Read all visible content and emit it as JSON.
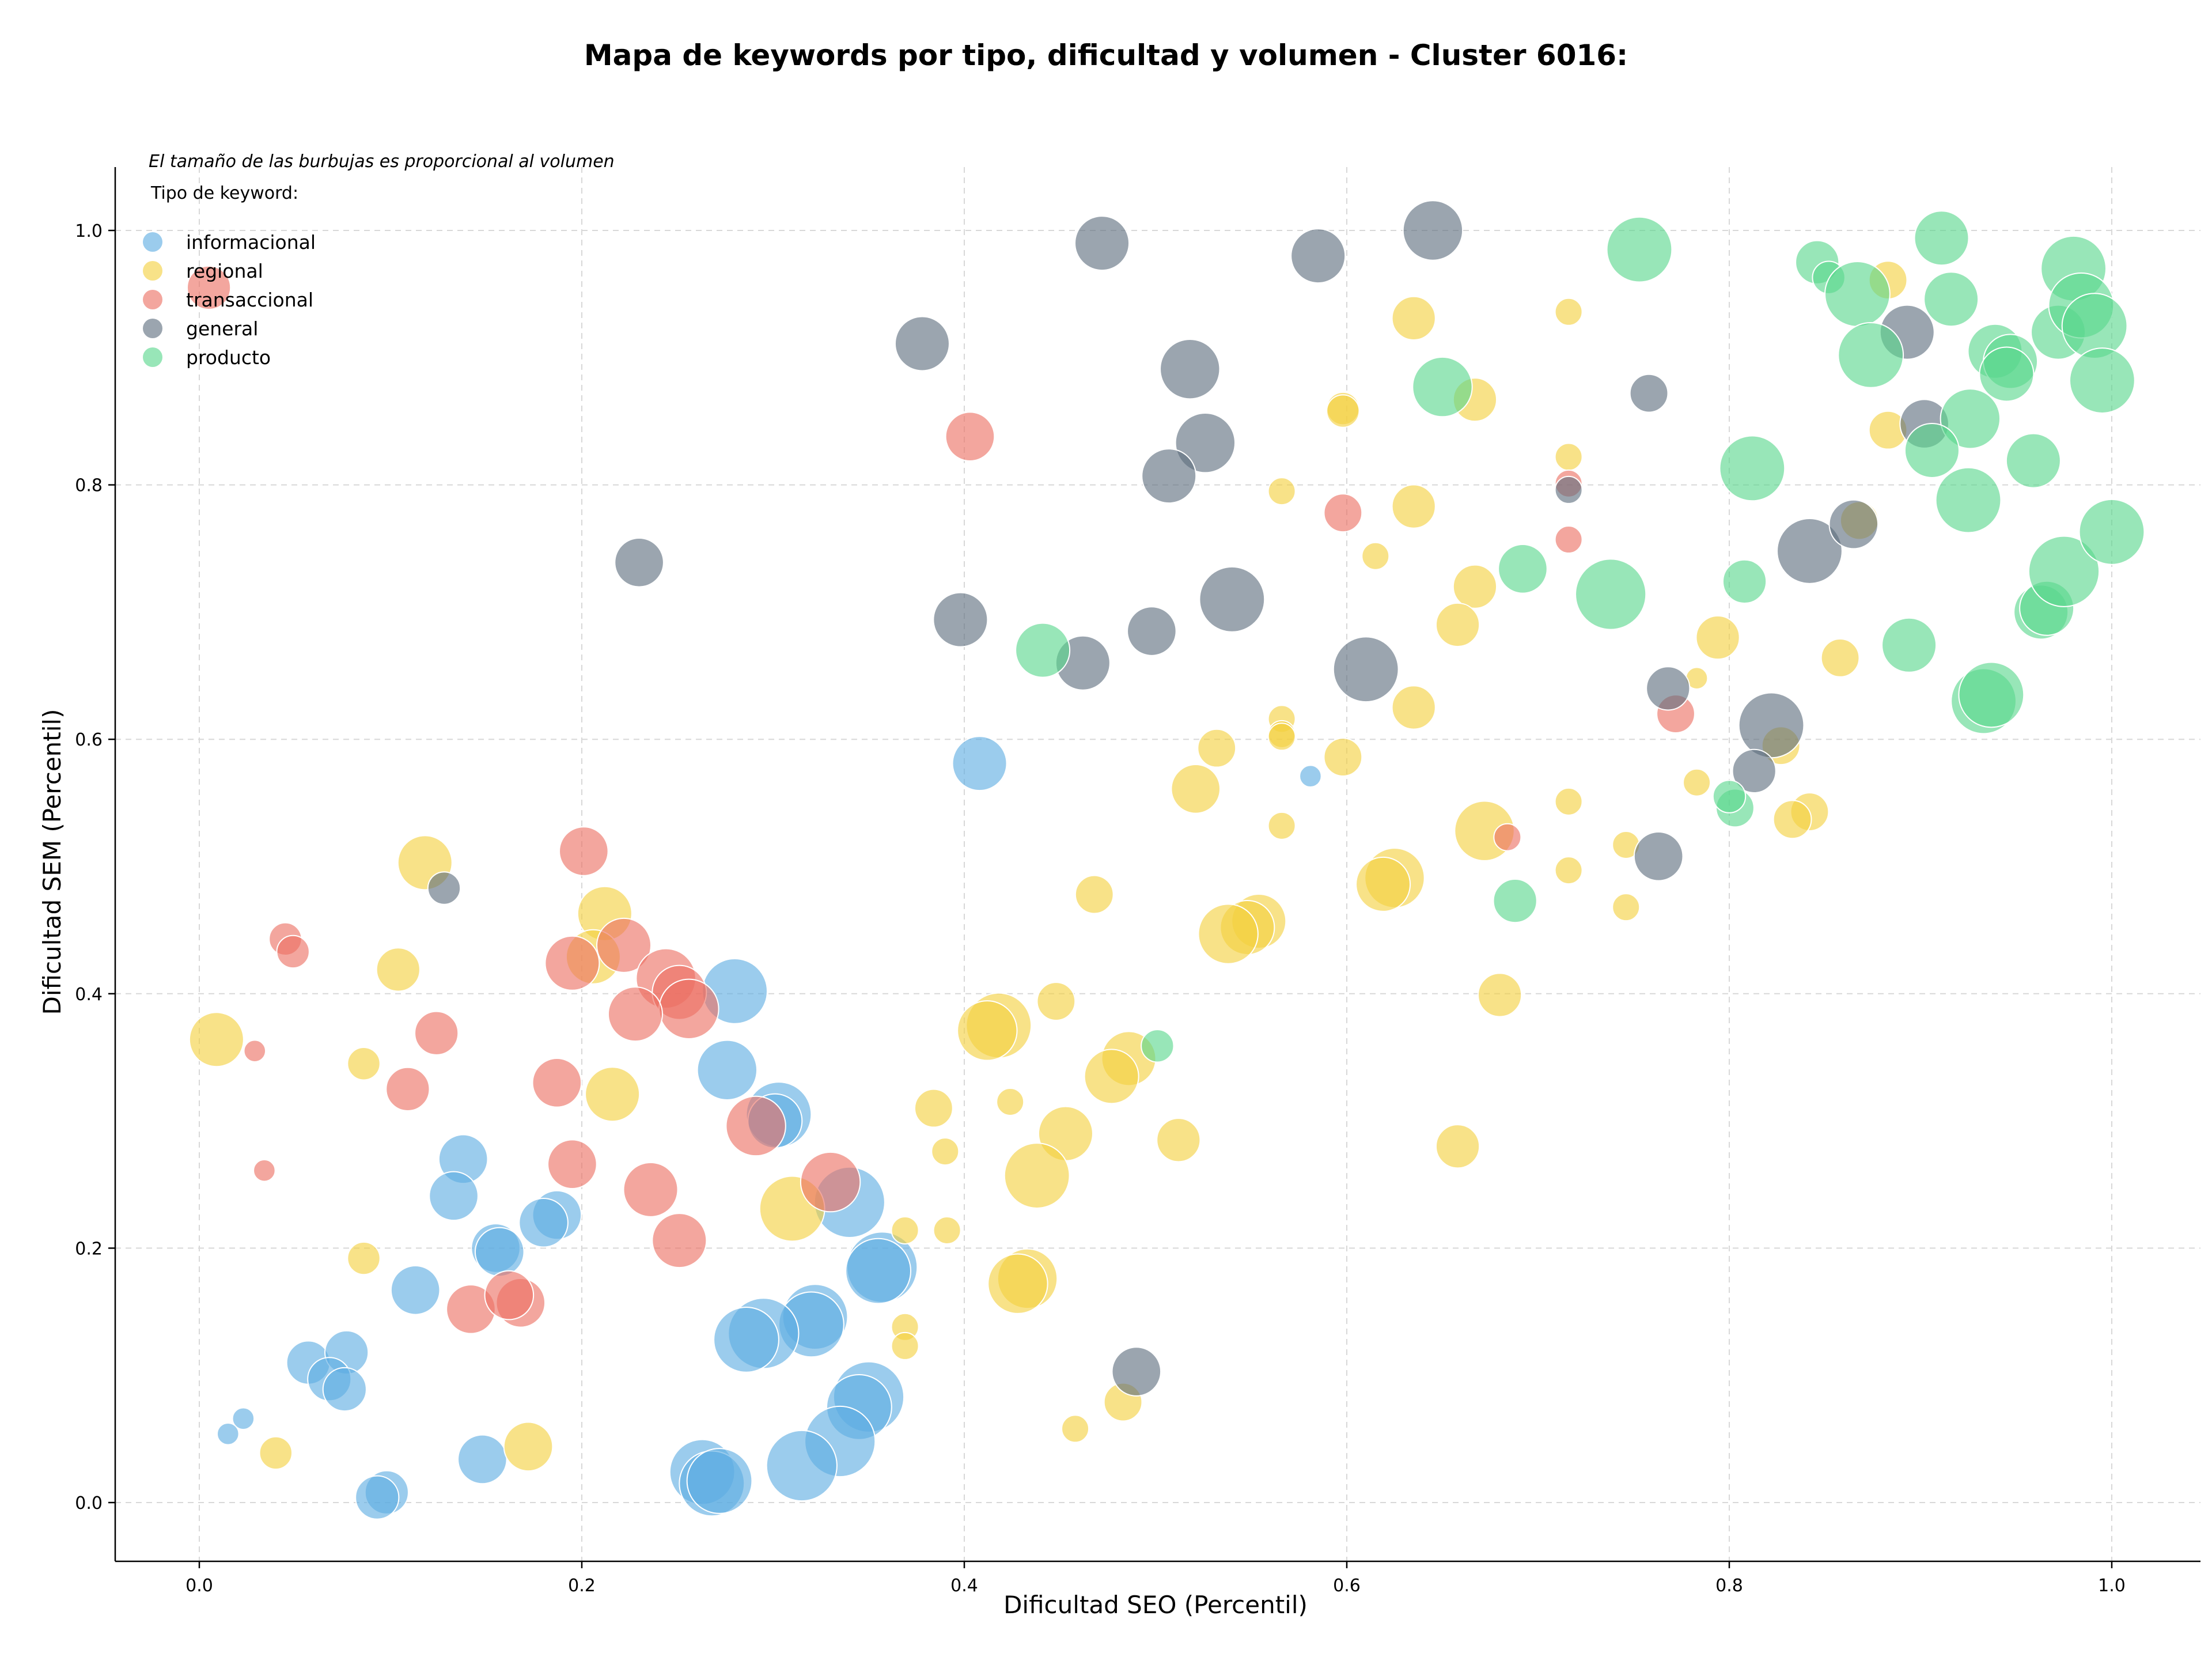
{
  "chart_data": {
    "type": "scatter",
    "title": "Mapa de keywords por tipo, dificultad y volumen - Cluster 6016:",
    "xlabel": "Dificultad SEO (Percentil)",
    "ylabel": "Dificultad SEM (Percentil)",
    "xlim": [
      -0.045,
      1.05
    ],
    "ylim": [
      -0.045,
      1.05
    ],
    "xticks": [
      "0.0",
      "0.2",
      "0.4",
      "0.6",
      "0.8",
      "1.0"
    ],
    "yticks": [
      "0.0",
      "0.2",
      "0.4",
      "0.6",
      "0.8",
      "1.0"
    ],
    "grid": true,
    "legend_position": "top-left",
    "legend_note": "El tamaño de las burbujas es proporcional al volumen",
    "legend_title": "Tipo de keyword:",
    "series": [
      {
        "name": "informacional",
        "color": "#5dade2",
        "points": [
          [
            0.408,
            0.581,
            1.0
          ],
          [
            0.581,
            0.571,
            0.4
          ],
          [
            0.28,
            0.402,
            1.2
          ],
          [
            0.276,
            0.34,
            1.1
          ],
          [
            0.303,
            0.305,
            1.2
          ],
          [
            0.301,
            0.3,
            1.0
          ],
          [
            0.34,
            0.236,
            1.3
          ],
          [
            0.357,
            0.185,
            1.3
          ],
          [
            0.355,
            0.182,
            1.2
          ],
          [
            0.322,
            0.146,
            1.2
          ],
          [
            0.32,
            0.14,
            1.2
          ],
          [
            0.295,
            0.133,
            1.3
          ],
          [
            0.286,
            0.128,
            1.2
          ],
          [
            0.35,
            0.083,
            1.3
          ],
          [
            0.345,
            0.075,
            1.2
          ],
          [
            0.335,
            0.048,
            1.3
          ],
          [
            0.315,
            0.029,
            1.3
          ],
          [
            0.263,
            0.024,
            1.2
          ],
          [
            0.268,
            0.015,
            1.2
          ],
          [
            0.272,
            0.017,
            1.2
          ],
          [
            0.138,
            0.27,
            0.9
          ],
          [
            0.133,
            0.241,
            0.9
          ],
          [
            0.187,
            0.226,
            0.9
          ],
          [
            0.18,
            0.22,
            0.9
          ],
          [
            0.155,
            0.2,
            0.9
          ],
          [
            0.157,
            0.197,
            0.9
          ],
          [
            0.113,
            0.167,
            0.9
          ],
          [
            0.057,
            0.11,
            0.8
          ],
          [
            0.077,
            0.118,
            0.8
          ],
          [
            0.068,
            0.097,
            0.8
          ],
          [
            0.076,
            0.089,
            0.8
          ],
          [
            0.148,
            0.034,
            0.9
          ],
          [
            0.098,
            0.008,
            0.8
          ],
          [
            0.093,
            0.004,
            0.8
          ],
          [
            0.023,
            0.066,
            0.4
          ],
          [
            0.015,
            0.054,
            0.4
          ]
        ]
      },
      {
        "name": "regional",
        "color": "#f4d03f",
        "points": [
          [
            0.635,
            0.931,
            0.8
          ],
          [
            0.598,
            0.86,
            0.6
          ],
          [
            0.598,
            0.858,
            0.6
          ],
          [
            0.667,
            0.867,
            0.8
          ],
          [
            0.716,
            0.936,
            0.5
          ],
          [
            0.716,
            0.822,
            0.5
          ],
          [
            0.566,
            0.795,
            0.5
          ],
          [
            0.635,
            0.783,
            0.8
          ],
          [
            0.615,
            0.744,
            0.5
          ],
          [
            0.667,
            0.72,
            0.8
          ],
          [
            0.658,
            0.69,
            0.8
          ],
          [
            0.635,
            0.625,
            0.8
          ],
          [
            0.566,
            0.616,
            0.5
          ],
          [
            0.566,
            0.604,
            0.5
          ],
          [
            0.566,
            0.602,
            0.5
          ],
          [
            0.532,
            0.593,
            0.7
          ],
          [
            0.598,
            0.586,
            0.7
          ],
          [
            0.521,
            0.561,
            0.9
          ],
          [
            0.566,
            0.532,
            0.5
          ],
          [
            0.672,
            0.528,
            1.1
          ],
          [
            0.716,
            0.551,
            0.5
          ],
          [
            0.716,
            0.497,
            0.5
          ],
          [
            0.746,
            0.517,
            0.5
          ],
          [
            0.746,
            0.468,
            0.5
          ],
          [
            0.625,
            0.491,
            1.1
          ],
          [
            0.619,
            0.486,
            1.0
          ],
          [
            0.554,
            0.457,
            1.0
          ],
          [
            0.548,
            0.452,
            1.0
          ],
          [
            0.538,
            0.447,
            1.1
          ],
          [
            0.468,
            0.478,
            0.7
          ],
          [
            0.68,
            0.399,
            0.8
          ],
          [
            0.448,
            0.394,
            0.7
          ],
          [
            0.418,
            0.375,
            1.2
          ],
          [
            0.412,
            0.371,
            1.1
          ],
          [
            0.486,
            0.349,
            1.0
          ],
          [
            0.477,
            0.335,
            1.0
          ],
          [
            0.384,
            0.31,
            0.7
          ],
          [
            0.424,
            0.315,
            0.5
          ],
          [
            0.453,
            0.29,
            1.0
          ],
          [
            0.512,
            0.285,
            0.8
          ],
          [
            0.39,
            0.276,
            0.5
          ],
          [
            0.658,
            0.28,
            0.8
          ],
          [
            0.438,
            0.257,
            1.2
          ],
          [
            0.31,
            0.231,
            1.2
          ],
          [
            0.369,
            0.214,
            0.5
          ],
          [
            0.391,
            0.214,
            0.5
          ],
          [
            0.433,
            0.176,
            1.1
          ],
          [
            0.428,
            0.172,
            1.1
          ],
          [
            0.369,
            0.138,
            0.5
          ],
          [
            0.369,
            0.123,
            0.5
          ],
          [
            0.483,
            0.079,
            0.7
          ],
          [
            0.458,
            0.058,
            0.5
          ],
          [
            0.794,
            0.68,
            0.8
          ],
          [
            0.858,
            0.664,
            0.7
          ],
          [
            0.783,
            0.648,
            0.4
          ],
          [
            0.783,
            0.566,
            0.5
          ],
          [
            0.827,
            0.595,
            0.7
          ],
          [
            0.842,
            0.543,
            0.7
          ],
          [
            0.833,
            0.537,
            0.7
          ],
          [
            0.883,
            0.961,
            0.7
          ],
          [
            0.883,
            0.843,
            0.7
          ],
          [
            0.868,
            0.772,
            0.7
          ],
          [
            0.118,
            0.503,
            1.0
          ],
          [
            0.212,
            0.463,
            1.0
          ],
          [
            0.206,
            0.429,
            1.0
          ],
          [
            0.104,
            0.419,
            0.8
          ],
          [
            0.009,
            0.364,
            1.0
          ],
          [
            0.086,
            0.345,
            0.6
          ],
          [
            0.216,
            0.321,
            1.0
          ],
          [
            0.086,
            0.192,
            0.6
          ],
          [
            0.172,
            0.044,
            0.9
          ],
          [
            0.04,
            0.039,
            0.6
          ]
        ]
      },
      {
        "name": "transaccional",
        "color": "#ec7063",
        "points": [
          [
            0.403,
            0.838,
            0.9
          ],
          [
            0.598,
            0.778,
            0.7
          ],
          [
            0.716,
            0.801,
            0.5
          ],
          [
            0.716,
            0.757,
            0.5
          ],
          [
            0.772,
            0.62,
            0.7
          ],
          [
            0.684,
            0.523,
            0.5
          ],
          [
            0.005,
            0.955,
            0.8
          ],
          [
            0.201,
            0.512,
            0.9
          ],
          [
            0.045,
            0.443,
            0.6
          ],
          [
            0.049,
            0.433,
            0.6
          ],
          [
            0.222,
            0.438,
            1.0
          ],
          [
            0.195,
            0.424,
            1.0
          ],
          [
            0.244,
            0.412,
            1.1
          ],
          [
            0.251,
            0.401,
            1.0
          ],
          [
            0.256,
            0.388,
            1.1
          ],
          [
            0.228,
            0.384,
            1.0
          ],
          [
            0.124,
            0.369,
            0.8
          ],
          [
            0.029,
            0.355,
            0.4
          ],
          [
            0.109,
            0.325,
            0.8
          ],
          [
            0.187,
            0.33,
            0.9
          ],
          [
            0.195,
            0.266,
            0.9
          ],
          [
            0.291,
            0.296,
            1.1
          ],
          [
            0.034,
            0.261,
            0.4
          ],
          [
            0.236,
            0.246,
            1.0
          ],
          [
            0.33,
            0.252,
            1.1
          ],
          [
            0.251,
            0.206,
            1.0
          ],
          [
            0.142,
            0.152,
            0.9
          ],
          [
            0.168,
            0.157,
            0.9
          ],
          [
            0.162,
            0.163,
            0.9
          ]
        ]
      },
      {
        "name": "general",
        "color": "#5d6d7e",
        "points": [
          [
            0.472,
            0.99,
            1.0
          ],
          [
            0.585,
            0.98,
            1.0
          ],
          [
            0.645,
            1.0,
            1.1
          ],
          [
            0.378,
            0.911,
            1.0
          ],
          [
            0.518,
            0.891,
            1.1
          ],
          [
            0.526,
            0.833,
            1.1
          ],
          [
            0.507,
            0.807,
            1.0
          ],
          [
            0.758,
            0.872,
            0.7
          ],
          [
            0.716,
            0.796,
            0.5
          ],
          [
            0.23,
            0.739,
            0.9
          ],
          [
            0.398,
            0.694,
            1.0
          ],
          [
            0.498,
            0.685,
            0.9
          ],
          [
            0.54,
            0.71,
            1.2
          ],
          [
            0.462,
            0.66,
            1.0
          ],
          [
            0.61,
            0.655,
            1.2
          ],
          [
            0.128,
            0.483,
            0.6
          ],
          [
            0.49,
            0.103,
            0.9
          ],
          [
            0.768,
            0.64,
            0.8
          ],
          [
            0.822,
            0.611,
            1.2
          ],
          [
            0.842,
            0.748,
            1.2
          ],
          [
            0.865,
            0.769,
            0.9
          ],
          [
            0.813,
            0.575,
            0.8
          ],
          [
            0.763,
            0.508,
            0.9
          ],
          [
            0.893,
            0.92,
            1.0
          ],
          [
            0.902,
            0.848,
            0.9
          ]
        ]
      },
      {
        "name": "producto",
        "color": "#58d68d",
        "points": [
          [
            0.753,
            0.985,
            1.2
          ],
          [
            0.65,
            0.877,
            1.1
          ],
          [
            0.441,
            0.67,
            1.0
          ],
          [
            0.692,
            0.734,
            0.9
          ],
          [
            0.738,
            0.714,
            1.3
          ],
          [
            0.688,
            0.473,
            0.8
          ],
          [
            0.501,
            0.359,
            0.6
          ],
          [
            0.812,
            0.813,
            1.2
          ],
          [
            0.808,
            0.724,
            0.8
          ],
          [
            0.803,
            0.546,
            0.7
          ],
          [
            0.8,
            0.555,
            0.6
          ],
          [
            0.846,
            0.975,
            0.8
          ],
          [
            0.852,
            0.963,
            0.6
          ],
          [
            0.867,
            0.95,
            1.2
          ],
          [
            0.874,
            0.902,
            1.2
          ],
          [
            0.911,
            0.994,
            1.0
          ],
          [
            0.916,
            0.946,
            1.0
          ],
          [
            0.926,
            0.852,
            1.1
          ],
          [
            0.906,
            0.827,
            1.0
          ],
          [
            0.925,
            0.788,
            1.2
          ],
          [
            0.894,
            0.674,
            1.0
          ],
          [
            0.933,
            0.63,
            1.2
          ],
          [
            0.937,
            0.635,
            1.2
          ],
          [
            0.939,
            0.905,
            1.0
          ],
          [
            0.947,
            0.897,
            1.0
          ],
          [
            0.945,
            0.887,
            1.0
          ],
          [
            0.959,
            0.819,
            1.0
          ],
          [
            0.963,
            0.7,
            1.0
          ],
          [
            0.966,
            0.703,
            1.0
          ],
          [
            0.972,
            0.92,
            1.0
          ],
          [
            0.98,
            0.97,
            1.2
          ],
          [
            0.984,
            0.941,
            1.2
          ],
          [
            0.991,
            0.925,
            1.2
          ],
          [
            0.995,
            0.882,
            1.2
          ],
          [
            0.975,
            0.732,
            1.3
          ],
          [
            1.0,
            0.763,
            1.2
          ]
        ]
      }
    ]
  }
}
